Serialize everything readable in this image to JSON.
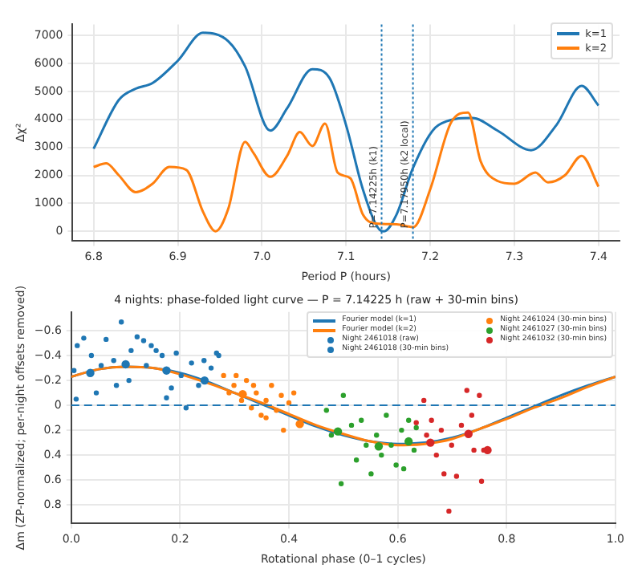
{
  "chart_data": [
    {
      "type": "line",
      "xlabel": "Period P (hours)",
      "ylabel": "Δχ²",
      "xlim": [
        6.775,
        7.425
      ],
      "xticks": [
        6.8,
        6.9,
        {
          "value": 7.0,
          "label": "7.0"
        },
        7.1,
        7.2,
        7.3,
        7.4
      ],
      "ylim": [
        -350,
        7400
      ],
      "yticks": [
        0,
        1000,
        2000,
        3000,
        4000,
        5000,
        6000,
        7000
      ],
      "grid": true,
      "legend": "top right",
      "marker": "none",
      "line_style": "solid",
      "ref_lines": [
        {
          "axis": "x",
          "value": 7.14225,
          "label": "P=7.14225h (k1)",
          "color": "#1f77b4",
          "line_style": "dotted"
        },
        {
          "axis": "x",
          "value": 7.1795,
          "label": "P=7.17950h (k2 local)",
          "color": "#1f77b4",
          "line_style": "dotted"
        }
      ],
      "series": [
        {
          "name": "k=1",
          "color": "#1f77b4",
          "x": [
            6.8,
            6.83,
            6.85,
            6.87,
            6.9,
            6.93,
            6.96,
            6.98,
            7.01,
            7.03,
            7.06,
            7.08,
            7.1,
            7.12,
            7.14,
            7.145,
            7.16,
            7.18,
            7.21,
            7.25,
            7.28,
            7.32,
            7.35,
            7.38,
            7.4
          ],
          "values": [
            2950,
            4700,
            5100,
            5300,
            6100,
            7100,
            6800,
            5900,
            3600,
            4400,
            5800,
            5500,
            3800,
            1500,
            50,
            0,
            600,
            2300,
            3800,
            4050,
            3600,
            2900,
            3800,
            5200,
            4500
          ]
        },
        {
          "name": "k=2",
          "color": "#ff7f0e",
          "x": [
            6.8,
            6.815,
            6.83,
            6.85,
            6.87,
            6.89,
            6.91,
            6.93,
            6.945,
            6.96,
            6.98,
            6.99,
            7.01,
            7.03,
            7.045,
            7.06,
            7.075,
            7.09,
            7.105,
            7.12,
            7.135,
            7.16,
            7.18,
            7.2,
            7.225,
            7.245,
            7.26,
            7.28,
            7.3,
            7.325,
            7.34,
            7.36,
            7.38,
            7.4
          ],
          "values": [
            2300,
            2430,
            2000,
            1400,
            1700,
            2300,
            2200,
            700,
            0,
            800,
            3200,
            2800,
            1950,
            2700,
            3550,
            3050,
            3850,
            2100,
            1900,
            600,
            280,
            250,
            150,
            1500,
            3900,
            4250,
            2500,
            1800,
            1700,
            2100,
            1750,
            2000,
            2700,
            1600
          ]
        }
      ]
    },
    {
      "type": "scatter",
      "title": "4 nights: phase-folded light curve — P = 7.14225 h (raw + 30-min bins)",
      "xlabel": "Rotational phase (0–1 cycles)",
      "ylabel": "Δm (ZP-normalized; per-night offsets removed)",
      "xlim": [
        0,
        1
      ],
      "xticks": [
        {
          "value": 0,
          "label": "0.0"
        },
        0.2,
        0.4,
        0.6,
        0.8,
        {
          "value": 1,
          "label": "1.0"
        }
      ],
      "ylim": [
        0.95,
        -0.75
      ],
      "yticks": [
        {
          "value": -0.6,
          "label": "−0.6"
        },
        {
          "value": -0.4,
          "label": "−0.4"
        },
        {
          "value": -0.2,
          "label": "−0.2"
        },
        0.0,
        0.2,
        0.4,
        0.6,
        0.8
      ],
      "grid": true,
      "legend": "top right",
      "marker": "circle",
      "ref_lines": [
        {
          "axis": "y",
          "value": 0,
          "color": "#1f77b4",
          "line_style": "dashed"
        }
      ],
      "series": [
        {
          "name": "Fourier model (k=1)",
          "type": "line",
          "marker": "none",
          "color": "#1f77b4",
          "x": [
            0,
            0.05,
            0.1,
            0.15,
            0.2,
            0.25,
            0.3,
            0.35,
            0.4,
            0.45,
            0.5,
            0.55,
            0.6,
            0.65,
            0.7,
            0.75,
            0.8,
            0.85,
            0.9,
            0.95,
            1
          ],
          "values": [
            -0.23,
            -0.29,
            -0.31,
            -0.3,
            -0.26,
            -0.19,
            -0.1,
            -0.01,
            0.08,
            0.17,
            0.24,
            0.29,
            0.31,
            0.3,
            0.26,
            0.19,
            0.1,
            0.01,
            -0.08,
            -0.16,
            -0.23
          ]
        },
        {
          "name": "Fourier model (k=2)",
          "type": "line",
          "marker": "none",
          "color": "#ff7f0e",
          "x": [
            0,
            0.05,
            0.1,
            0.15,
            0.2,
            0.25,
            0.3,
            0.35,
            0.4,
            0.45,
            0.5,
            0.55,
            0.6,
            0.65,
            0.7,
            0.75,
            0.8,
            0.85,
            0.9,
            0.95,
            1
          ],
          "values": [
            -0.23,
            -0.29,
            -0.31,
            -0.3,
            -0.25,
            -0.18,
            -0.1,
            -0.02,
            0.07,
            0.16,
            0.23,
            0.29,
            0.32,
            0.31,
            0.27,
            0.19,
            0.11,
            0.02,
            -0.06,
            -0.15,
            -0.23
          ]
        },
        {
          "name": "Night 2461018 (raw)",
          "type": "scatter",
          "color": "#1f77b4",
          "x": [
            0.005,
            0.011,
            0.023,
            0.009,
            0.037,
            0.046,
            0.055,
            0.064,
            0.092,
            0.078,
            0.083,
            0.11,
            0.121,
            0.133,
            0.147,
            0.156,
            0.167,
            0.175,
            0.184,
            0.193,
            0.202,
            0.211,
            0.221,
            0.234,
            0.244,
            0.257,
            0.267,
            0.271,
            0.106,
            0.138
          ],
          "values": [
            -0.28,
            -0.48,
            -0.54,
            -0.05,
            -0.4,
            -0.1,
            -0.32,
            -0.53,
            -0.67,
            -0.36,
            -0.16,
            -0.44,
            -0.55,
            -0.52,
            -0.48,
            -0.44,
            -0.4,
            -0.06,
            -0.14,
            -0.42,
            -0.24,
            0.02,
            -0.34,
            -0.16,
            -0.36,
            -0.3,
            -0.42,
            -0.4,
            -0.2,
            -0.32
          ]
        },
        {
          "name": "Night 2461018 (30-min bins)",
          "type": "scatter",
          "color": "#1f77b4",
          "x": [
            0.035,
            0.1,
            0.175,
            0.245
          ],
          "values": [
            -0.26,
            -0.33,
            -0.28,
            -0.2
          ]
        },
        {
          "type": "scatter",
          "color": "#ff7f0e",
          "x": [
            0.28,
            0.29,
            0.299,
            0.313,
            0.322,
            0.331,
            0.34,
            0.349,
            0.358,
            0.368,
            0.377,
            0.386,
            0.39,
            0.4,
            0.409,
            0.358,
            0.335,
            0.303
          ],
          "values": [
            -0.24,
            -0.1,
            -0.16,
            -0.04,
            -0.2,
            0.02,
            -0.1,
            0.08,
            -0.04,
            -0.16,
            0.04,
            -0.08,
            0.2,
            -0.02,
            -0.1,
            0.1,
            -0.16,
            -0.24
          ]
        },
        {
          "name": "Night 2461024 (30-min bins)",
          "type": "scatter",
          "color": "#ff7f0e",
          "x": [
            0.315,
            0.42
          ],
          "values": [
            -0.09,
            0.15
          ]
        },
        {
          "type": "scatter",
          "color": "#2ca02c",
          "x": [
            0.469,
            0.478,
            0.5,
            0.515,
            0.524,
            0.496,
            0.533,
            0.542,
            0.551,
            0.561,
            0.57,
            0.579,
            0.588,
            0.597,
            0.607,
            0.611,
            0.62,
            0.63,
            0.634
          ],
          "values": [
            0.04,
            0.24,
            -0.08,
            0.16,
            0.44,
            0.63,
            0.12,
            0.32,
            0.55,
            0.24,
            0.4,
            0.08,
            0.32,
            0.48,
            0.2,
            0.51,
            0.12,
            0.36,
            0.18
          ]
        },
        {
          "name": "Night 2461027 (30-min bins)",
          "type": "scatter",
          "color": "#2ca02c",
          "x": [
            0.49,
            0.565,
            0.62
          ],
          "values": [
            0.21,
            0.33,
            0.29
          ]
        },
        {
          "type": "scatter",
          "color": "#d62728",
          "x": [
            0.648,
            0.653,
            0.662,
            0.671,
            0.68,
            0.685,
            0.694,
            0.699,
            0.708,
            0.717,
            0.727,
            0.736,
            0.74,
            0.75,
            0.754,
            0.758,
            0.634
          ],
          "values": [
            -0.04,
            0.24,
            0.12,
            0.4,
            0.2,
            0.55,
            0.85,
            0.32,
            0.57,
            0.16,
            -0.12,
            0.08,
            0.36,
            -0.08,
            0.61,
            0.36,
            0.14
          ]
        },
        {
          "name": "Night 2461032 (30-min bins)",
          "type": "scatter",
          "color": "#d62728",
          "x": [
            0.66,
            0.73,
            0.765
          ],
          "values": [
            0.3,
            0.23,
            0.36
          ]
        }
      ]
    }
  ]
}
